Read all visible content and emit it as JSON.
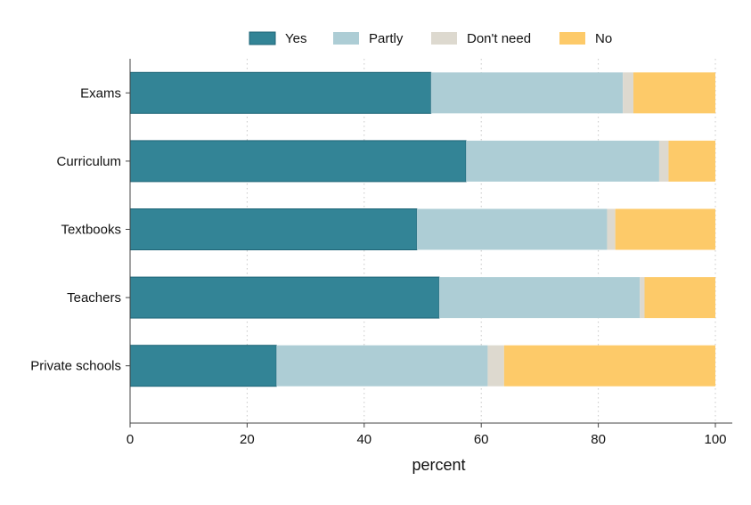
{
  "chart_data": {
    "type": "bar",
    "orientation": "horizontal",
    "stacked": true,
    "categories": [
      "Exams",
      "Curriculum",
      "Textbooks",
      "Teachers",
      "Private schools"
    ],
    "series": [
      {
        "name": "Yes",
        "color": "#338496",
        "values": [
          51.4,
          57.4,
          49.0,
          52.8,
          25.0
        ]
      },
      {
        "name": "Partly",
        "color": "#adcdd5",
        "values": [
          32.8,
          33.0,
          32.5,
          34.3,
          36.1
        ]
      },
      {
        "name": "Don't need",
        "color": "#ddd9cf",
        "values": [
          1.8,
          1.6,
          1.4,
          0.8,
          2.8
        ]
      },
      {
        "name": "No",
        "color": "#fdca69",
        "values": [
          14.0,
          8.0,
          17.1,
          12.1,
          36.1
        ]
      }
    ],
    "xlabel": "percent",
    "ylabel": "",
    "xlim": [
      0,
      100
    ],
    "xticks": [
      0,
      20,
      40,
      60,
      80,
      100
    ],
    "grid": "vertical dotted",
    "legend_position": "top"
  }
}
